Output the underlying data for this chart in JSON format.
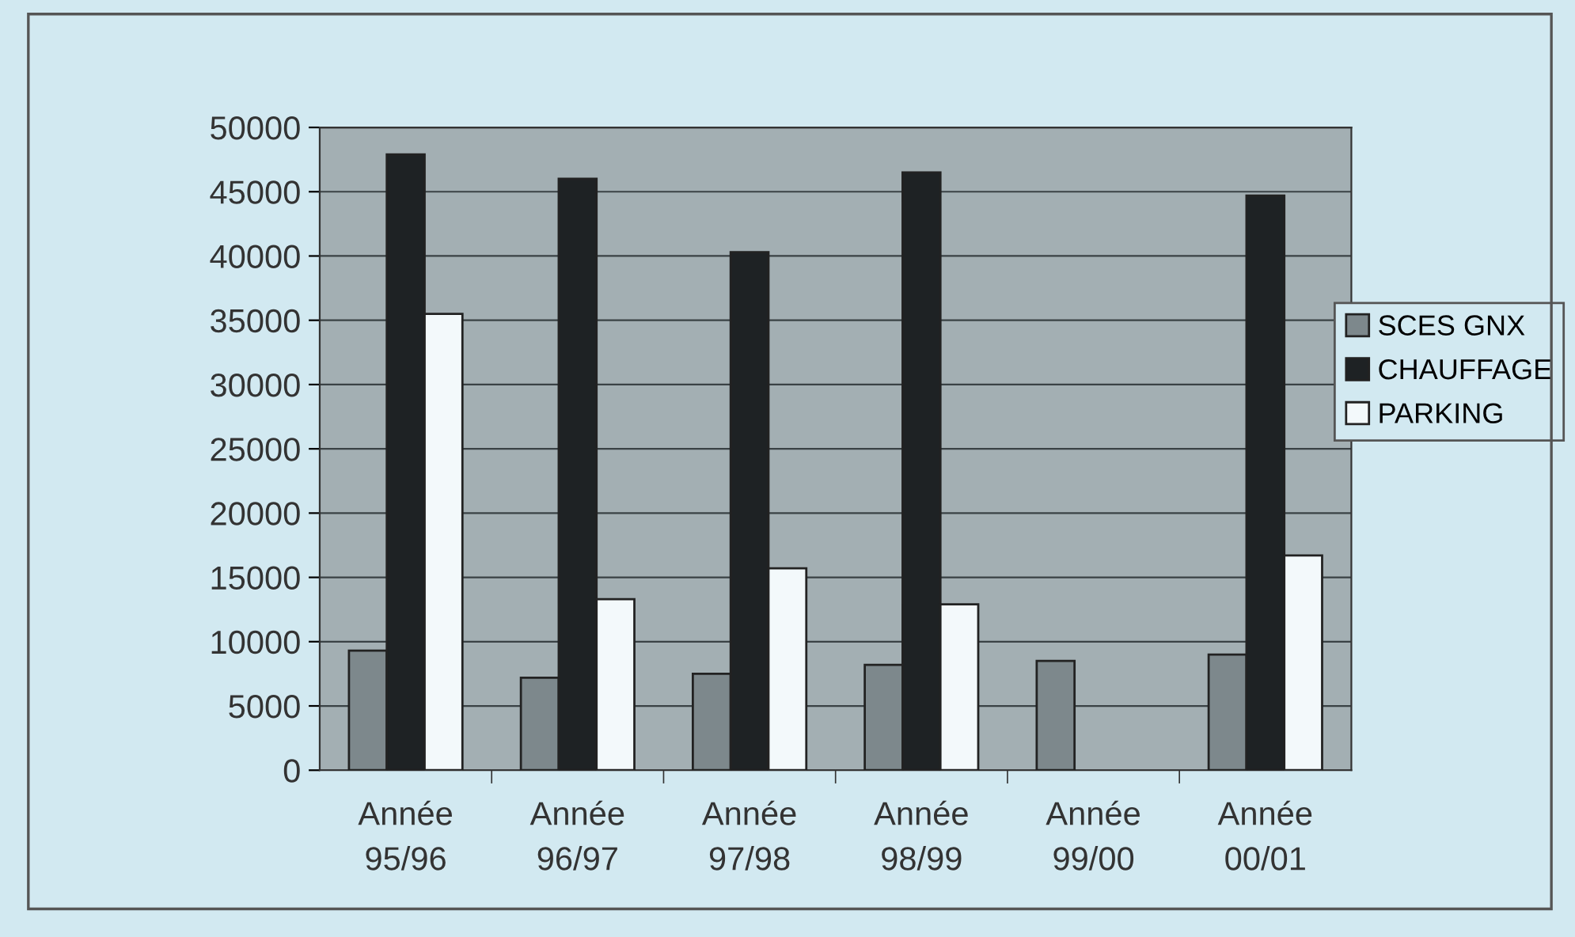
{
  "chart_data": {
    "type": "bar",
    "categories": [
      "Année\n95/96",
      "Année\n96/97",
      "Année\n97/98",
      "Année\n98/99",
      "Année\n99/00",
      "Année\n00/01"
    ],
    "series": [
      {
        "name": "SCES GNX",
        "color": "#7d888c",
        "values": [
          9300,
          7200,
          7500,
          8200,
          8500,
          9000
        ]
      },
      {
        "name": "CHAUFFAGE",
        "color": "#1e2224",
        "values": [
          47900,
          46000,
          40300,
          46500,
          null,
          44700
        ]
      },
      {
        "name": "PARKING",
        "color": "#f3f9fb",
        "values": [
          35500,
          13300,
          15700,
          12900,
          null,
          16700
        ]
      }
    ],
    "ylim": [
      0,
      50000
    ],
    "yticks": [
      0,
      5000,
      10000,
      15000,
      20000,
      25000,
      30000,
      35000,
      40000,
      45000,
      50000
    ],
    "grid": "y",
    "legend": "right"
  }
}
